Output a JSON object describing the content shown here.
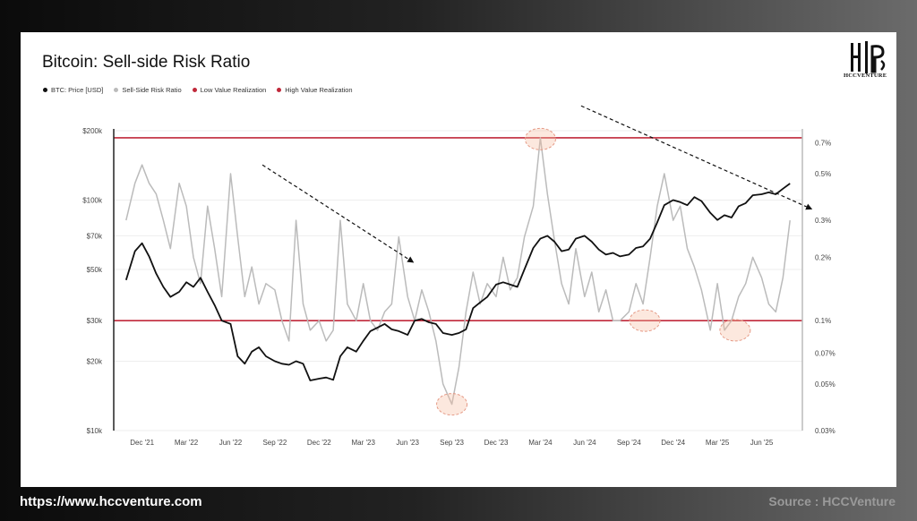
{
  "footer": {
    "url": "https://www.hccventure.com",
    "source": "Source : HCCVenture"
  },
  "brand": {
    "logo_icon": "hcc-monogram-logo",
    "logo_text": "HCCVENTURE"
  },
  "chart_data": {
    "type": "line",
    "title": "Bitcoin: Sell-side Risk Ratio",
    "legend": [
      {
        "label": "BTC: Price [USD]",
        "color": "#111111"
      },
      {
        "label": "Sell-Side Risk Ratio",
        "color": "#bbbbbb"
      },
      {
        "label": "Low Value Realization",
        "color": "#c0283a"
      },
      {
        "label": "High Value Realization",
        "color": "#c0283a"
      }
    ],
    "x_ticks": [
      "Dec '21",
      "Mar '22",
      "Jun '22",
      "Sep '22",
      "Dec '22",
      "Mar '23",
      "Jun '23",
      "Sep '23",
      "Dec '23",
      "Mar '24",
      "Jun '24",
      "Sep '24",
      "Dec '24",
      "Mar '25",
      "Jun '25"
    ],
    "y_left": {
      "scale": "log",
      "range": [
        10000,
        200000
      ],
      "tick_values": [
        10000,
        20000,
        30000,
        50000,
        70000,
        100000,
        200000
      ],
      "tick_labels": [
        "$10k",
        "$20k",
        "$30k",
        "$50k",
        "$70k",
        "$100k",
        "$200k"
      ]
    },
    "y_right": {
      "scale": "log",
      "range": [
        0.03,
        0.8
      ],
      "tick_values": [
        0.03,
        0.05,
        0.07,
        0.1,
        0.2,
        0.3,
        0.5,
        0.7
      ],
      "tick_labels": [
        "0.03%",
        "0.05%",
        "0.07%",
        "0.1%",
        "0.2%",
        "0.3%",
        "0.5%",
        "0.7%"
      ]
    },
    "reference_lines": [
      {
        "name": "High Value Realization",
        "value": 0.74,
        "color": "#c0283a"
      },
      {
        "name": "Low Value Realization",
        "value": 0.1,
        "color": "#c0283a"
      }
    ],
    "series": [
      {
        "name": "BTC: Price [USD]",
        "color": "#111111",
        "axis": "left",
        "x": [
          2021.83,
          2021.88,
          2021.92,
          2021.96,
          2022.0,
          2022.04,
          2022.08,
          2022.13,
          2022.17,
          2022.21,
          2022.25,
          2022.29,
          2022.33,
          2022.37,
          2022.42,
          2022.46,
          2022.5,
          2022.54,
          2022.58,
          2022.62,
          2022.67,
          2022.71,
          2022.75,
          2022.79,
          2022.83,
          2022.87,
          2022.92,
          2022.96,
          2023.0,
          2023.04,
          2023.08,
          2023.13,
          2023.17,
          2023.21,
          2023.25,
          2023.29,
          2023.33,
          2023.37,
          2023.42,
          2023.46,
          2023.5,
          2023.54,
          2023.58,
          2023.62,
          2023.67,
          2023.71,
          2023.75,
          2023.79,
          2023.83,
          2023.87,
          2023.92,
          2023.96,
          2024.0,
          2024.04,
          2024.08,
          2024.13,
          2024.17,
          2024.21,
          2024.25,
          2024.29,
          2024.33,
          2024.37,
          2024.42,
          2024.46,
          2024.5,
          2024.54,
          2024.58,
          2024.62,
          2024.67,
          2024.71,
          2024.75,
          2024.79,
          2024.83,
          2024.87,
          2024.92,
          2024.96,
          2025.0,
          2025.04,
          2025.08,
          2025.13,
          2025.17,
          2025.21,
          2025.25,
          2025.29,
          2025.33,
          2025.37,
          2025.42,
          2025.46,
          2025.5,
          2025.54,
          2025.58
        ],
        "values": [
          45000,
          60000,
          65000,
          57000,
          48000,
          42000,
          38000,
          40000,
          44000,
          42000,
          46000,
          40000,
          35000,
          30000,
          29000,
          21000,
          19500,
          22000,
          23000,
          21000,
          20000,
          19500,
          19300,
          20000,
          19500,
          16500,
          16800,
          17000,
          16600,
          21000,
          23000,
          22000,
          24500,
          27000,
          28000,
          29000,
          27500,
          27000,
          26000,
          30000,
          30500,
          29500,
          29000,
          26500,
          26000,
          26500,
          27500,
          34000,
          36000,
          38000,
          43000,
          44000,
          43000,
          42000,
          50000,
          62000,
          68000,
          70000,
          66000,
          60000,
          61000,
          68000,
          70000,
          66000,
          61000,
          58000,
          59000,
          57000,
          58000,
          62000,
          63000,
          68000,
          80000,
          95000,
          100000,
          98000,
          95000,
          103000,
          99000,
          88000,
          82000,
          86000,
          84000,
          94000,
          97000,
          105000,
          106000,
          108000,
          106000,
          112000,
          118000
        ]
      },
      {
        "name": "Sell-Side Risk Ratio",
        "color": "#bbbbbb",
        "axis": "right",
        "x": [
          2021.83,
          2021.88,
          2021.92,
          2021.96,
          2022.0,
          2022.04,
          2022.08,
          2022.13,
          2022.17,
          2022.21,
          2022.25,
          2022.29,
          2022.33,
          2022.37,
          2022.42,
          2022.46,
          2022.5,
          2022.54,
          2022.58,
          2022.62,
          2022.67,
          2022.71,
          2022.75,
          2022.79,
          2022.83,
          2022.87,
          2022.92,
          2022.96,
          2023.0,
          2023.04,
          2023.08,
          2023.13,
          2023.17,
          2023.21,
          2023.25,
          2023.29,
          2023.33,
          2023.37,
          2023.42,
          2023.46,
          2023.5,
          2023.54,
          2023.58,
          2023.62,
          2023.67,
          2023.71,
          2023.75,
          2023.79,
          2023.83,
          2023.87,
          2023.92,
          2023.96,
          2024.0,
          2024.04,
          2024.08,
          2024.13,
          2024.17,
          2024.21,
          2024.25,
          2024.29,
          2024.33,
          2024.37,
          2024.42,
          2024.46,
          2024.5,
          2024.54,
          2024.58,
          2024.62,
          2024.67,
          2024.71,
          2024.75,
          2024.79,
          2024.83,
          2024.87,
          2024.92,
          2024.96,
          2025.0,
          2025.04,
          2025.08,
          2025.13,
          2025.17,
          2025.21,
          2025.25,
          2025.29,
          2025.33,
          2025.37,
          2025.42,
          2025.46,
          2025.5,
          2025.54,
          2025.58
        ],
        "values": [
          0.3,
          0.45,
          0.55,
          0.45,
          0.4,
          0.3,
          0.22,
          0.45,
          0.35,
          0.2,
          0.15,
          0.35,
          0.22,
          0.13,
          0.5,
          0.25,
          0.13,
          0.18,
          0.12,
          0.15,
          0.14,
          0.1,
          0.08,
          0.3,
          0.12,
          0.09,
          0.1,
          0.08,
          0.09,
          0.3,
          0.12,
          0.1,
          0.15,
          0.1,
          0.09,
          0.11,
          0.12,
          0.25,
          0.13,
          0.1,
          0.14,
          0.11,
          0.08,
          0.05,
          0.04,
          0.06,
          0.11,
          0.17,
          0.12,
          0.15,
          0.13,
          0.2,
          0.14,
          0.16,
          0.25,
          0.35,
          0.74,
          0.4,
          0.24,
          0.15,
          0.12,
          0.22,
          0.13,
          0.17,
          0.11,
          0.14,
          0.1,
          0.1,
          0.11,
          0.15,
          0.12,
          0.2,
          0.35,
          0.5,
          0.3,
          0.35,
          0.22,
          0.18,
          0.14,
          0.09,
          0.15,
          0.09,
          0.1,
          0.13,
          0.15,
          0.2,
          0.16,
          0.12,
          0.11,
          0.16,
          0.3
        ]
      }
    ],
    "annotations": [
      {
        "type": "trend-arrow",
        "from": [
          2022.6,
          0.55
        ],
        "to": [
          2023.45,
          0.19
        ]
      },
      {
        "type": "trend-arrow",
        "from": [
          2024.4,
          1.05
        ],
        "to": [
          2025.7,
          0.34
        ]
      },
      {
        "type": "highlight-circle",
        "x": 2023.67,
        "y": 0.04
      },
      {
        "type": "highlight-circle",
        "x": 2024.17,
        "y": 0.73
      },
      {
        "type": "highlight-circle",
        "x": 2024.76,
        "y": 0.1
      },
      {
        "type": "highlight-circle",
        "x": 2025.27,
        "y": 0.09
      }
    ]
  }
}
